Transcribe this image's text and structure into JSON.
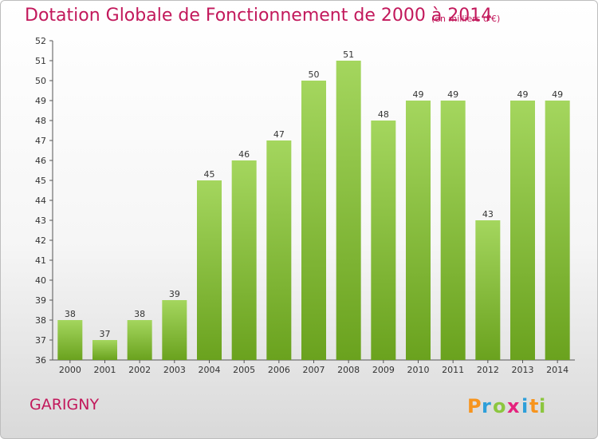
{
  "chart_data": {
    "type": "bar",
    "title": "Dotation Globale de Fonctionnement de 2000 à 2014",
    "subtitle": "(en milliers d'€)",
    "categories": [
      "2000",
      "2001",
      "2002",
      "2003",
      "2004",
      "2005",
      "2006",
      "2007",
      "2008",
      "2009",
      "2010",
      "2011",
      "2012",
      "2013",
      "2014"
    ],
    "values": [
      38,
      37,
      38,
      39,
      45,
      46,
      47,
      50,
      51,
      48,
      49,
      49,
      43,
      49,
      49
    ],
    "ylim": [
      36,
      52
    ],
    "yticks": [
      36,
      37,
      38,
      39,
      40,
      41,
      42,
      43,
      44,
      45,
      46,
      47,
      48,
      49,
      50,
      51,
      52
    ],
    "grid": false,
    "bar_color": "#8cc63f",
    "title_color": "#c2185b"
  },
  "place_name": "GARIGNY",
  "logo": {
    "text": "Proxiti",
    "letters": [
      {
        "ch": "P",
        "color": "#f7941d"
      },
      {
        "ch": "r",
        "color": "#2e9fd9"
      },
      {
        "ch": "o",
        "color": "#8cc63f"
      },
      {
        "ch": "x",
        "color": "#e5227d"
      },
      {
        "ch": "i",
        "color": "#2e9fd9"
      },
      {
        "ch": "t",
        "color": "#f7941d"
      },
      {
        "ch": "i",
        "color": "#8cc63f"
      }
    ]
  }
}
